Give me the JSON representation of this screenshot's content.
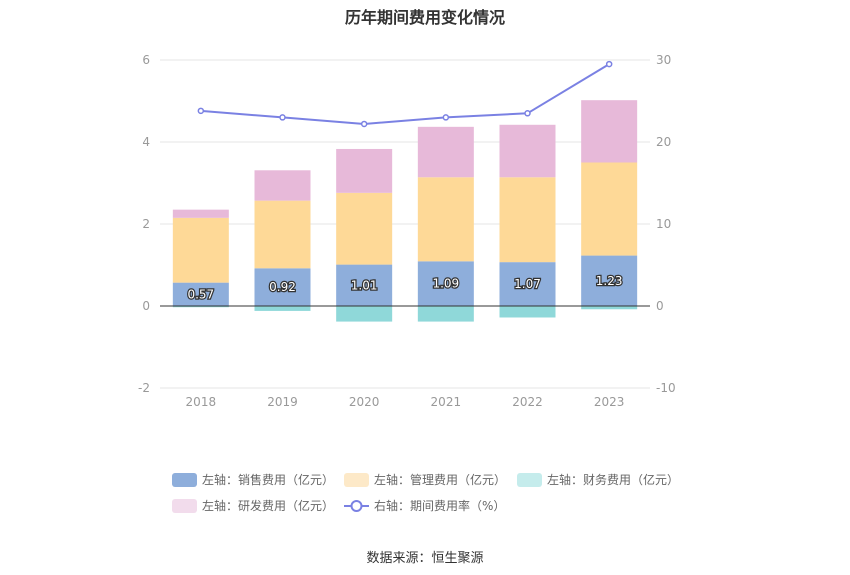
{
  "title": "历年期间费用变化情况",
  "source": "数据来源：恒生聚源",
  "chart_data": {
    "type": "bar",
    "stacked": true,
    "categories": [
      "2018",
      "2019",
      "2020",
      "2021",
      "2022",
      "2023"
    ],
    "left_axis": {
      "ylim": [
        -2,
        6
      ],
      "ticks": [
        "-2",
        "0",
        "2",
        "4",
        "6"
      ]
    },
    "right_axis": {
      "ylim": [
        -10,
        30
      ],
      "ticks": [
        "-10",
        "0",
        "10",
        "20",
        "30"
      ]
    },
    "series": [
      {
        "name": "左轴：销售费用（亿元）",
        "axis": "left",
        "kind": "bar",
        "values": [
          0.57,
          0.92,
          1.01,
          1.09,
          1.07,
          1.23
        ],
        "color": "#8eaedb",
        "labels": [
          "0.57",
          "0.92",
          "1.01",
          "1.09",
          "1.07",
          "1.23"
        ]
      },
      {
        "name": "左轴：管理费用（亿元）",
        "axis": "left",
        "kind": "bar",
        "values": [
          1.58,
          1.65,
          1.75,
          2.05,
          2.07,
          2.27
        ],
        "color": "#fed997"
      },
      {
        "name": "左轴：财务费用（亿元）",
        "axis": "left",
        "kind": "bar",
        "values": [
          -0.03,
          -0.12,
          -0.38,
          -0.38,
          -0.28,
          -0.08
        ],
        "color": "#8fd8d9"
      },
      {
        "name": "左轴：研发费用（亿元）",
        "axis": "left",
        "kind": "bar",
        "values": [
          0.2,
          0.74,
          1.07,
          1.23,
          1.28,
          1.52
        ],
        "color": "#e7b9d9"
      },
      {
        "name": "右轴：期间费用率（%）",
        "axis": "right",
        "kind": "line",
        "values": [
          23.8,
          23.0,
          22.2,
          23.0,
          23.5,
          29.5
        ],
        "color": "#7a81e3"
      }
    ],
    "legend_colors": [
      "#8eaedb",
      "#fde9c8",
      "#c5ecec",
      "#f2dcec",
      "#7a81e3"
    ],
    "grid": true,
    "legend_position": "bottom"
  }
}
